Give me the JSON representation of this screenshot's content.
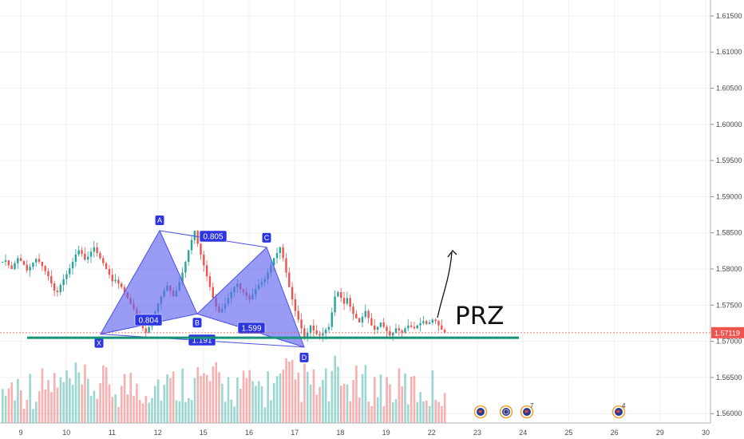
{
  "chart_data": {
    "type": "candlestick",
    "instrument_price_scale": {
      "ticks": [
        "1.56000",
        "1.56500",
        "1.57000",
        "1.57500",
        "1.58000",
        "1.58500",
        "1.59000",
        "1.59500",
        "1.60000",
        "1.60500",
        "1.61000",
        "1.61500"
      ],
      "ylim": [
        1.5587,
        1.6172
      ]
    },
    "x_ticks": [
      "9",
      "10",
      "11",
      "12",
      "15",
      "16",
      "17",
      "18",
      "19",
      "22",
      "23",
      "24",
      "25",
      "26",
      "29",
      "30"
    ],
    "last_price": "1.57119",
    "last_price_value": 1.57119,
    "prz_level": 1.5705,
    "prz_label": "PRZ",
    "pattern": {
      "points": [
        {
          "label": "X",
          "price": 1.571
        },
        {
          "label": "A",
          "price": 1.5853
        },
        {
          "label": "B",
          "price": 1.5738
        },
        {
          "label": "C",
          "price": 1.583
        },
        {
          "label": "D",
          "price": 1.5692
        }
      ],
      "ratios": {
        "xb": "0.804",
        "ac": "0.805",
        "bd": "1.599",
        "xd": "1.191"
      }
    },
    "events": [
      {
        "icon": "flag-icon",
        "count": ""
      },
      {
        "icon": "globe-icon",
        "count": ""
      },
      {
        "icon": "flag-icon",
        "count": "7"
      },
      {
        "icon": "flag-icon",
        "count": "4"
      }
    ],
    "series": [
      {
        "name": "",
        "values": [
          1.581,
          1.5812,
          1.5805,
          1.58,
          1.5808,
          1.5815,
          1.5811,
          1.5806,
          1.5798,
          1.5803,
          1.5809,
          1.5814,
          1.581,
          1.5804,
          1.5797,
          1.579,
          1.578,
          1.577,
          1.5768,
          1.5778,
          1.5786,
          1.5793,
          1.5801,
          1.581,
          1.582,
          1.5826,
          1.5821,
          1.5813,
          1.5817,
          1.5824,
          1.583,
          1.5822,
          1.5815,
          1.5808,
          1.58,
          1.5792,
          1.5783,
          1.5785,
          1.578,
          1.5775,
          1.5768,
          1.576,
          1.5752,
          1.5745,
          1.5735,
          1.5725,
          1.5718,
          1.5712,
          1.572,
          1.573,
          1.5741,
          1.5752,
          1.5762,
          1.577,
          1.5777,
          1.577,
          1.5762,
          1.577,
          1.5782,
          1.5795,
          1.581,
          1.5826,
          1.584,
          1.5853,
          1.5835,
          1.582,
          1.5805,
          1.579,
          1.5775,
          1.576,
          1.5748,
          1.574,
          1.5745,
          1.5752,
          1.576,
          1.5768,
          1.5775,
          1.578,
          1.5772,
          1.5768,
          1.5763,
          1.5758,
          1.5765,
          1.5772,
          1.5778,
          1.5782,
          1.5786,
          1.5795,
          1.5805,
          1.5815,
          1.5822,
          1.583,
          1.5815,
          1.5795,
          1.5775,
          1.5758,
          1.5742,
          1.573,
          1.5718,
          1.5705,
          1.5712,
          1.5722,
          1.5715,
          1.571,
          1.5708,
          1.5711,
          1.5716,
          1.572,
          1.574,
          1.5762,
          1.5768,
          1.576,
          1.5752,
          1.576,
          1.5748,
          1.5738,
          1.5732,
          1.5726,
          1.5734,
          1.5742,
          1.5732,
          1.5722,
          1.5716,
          1.572,
          1.5726,
          1.572,
          1.5714,
          1.5708,
          1.5712,
          1.5718,
          1.5715,
          1.5712,
          1.5718,
          1.5722,
          1.572,
          1.5718,
          1.5722,
          1.5725,
          1.5728,
          1.5724,
          1.5726,
          1.573,
          1.5728,
          1.5722,
          1.5716,
          1.5712
        ]
      }
    ]
  }
}
